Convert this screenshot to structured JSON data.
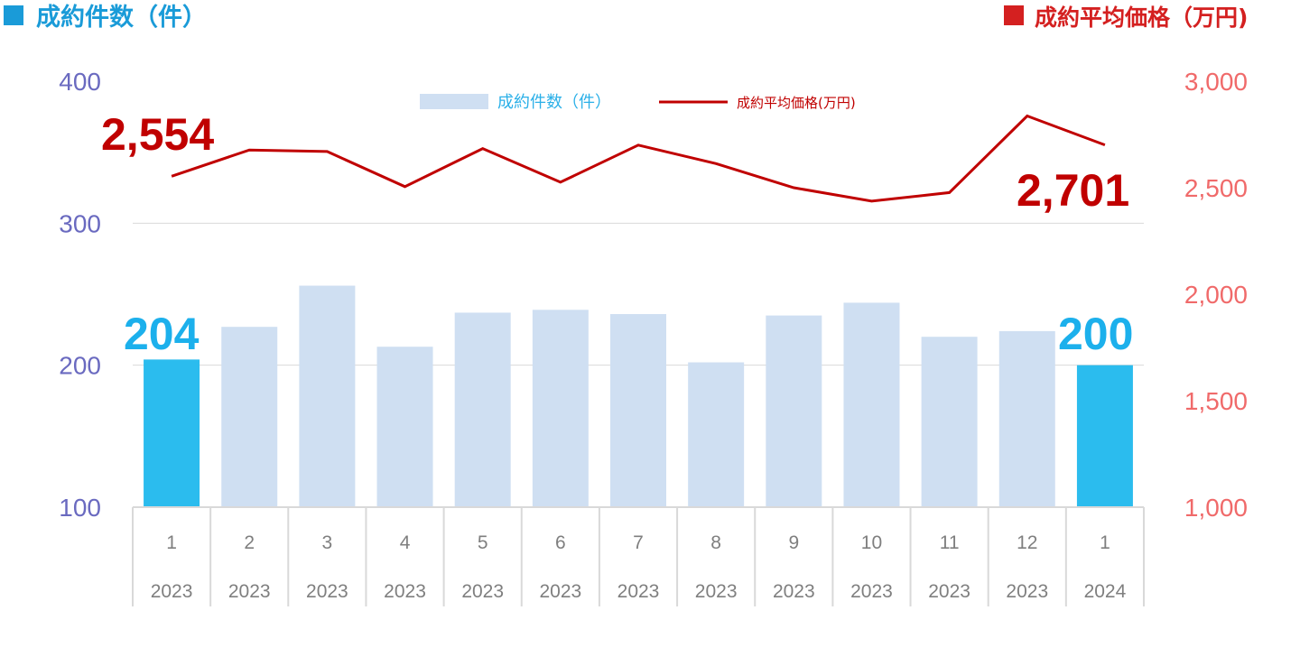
{
  "header": {
    "left_title": "成約件数（件）",
    "right_title": "成約平均価格（万円)",
    "left_color": "#1a9bd8",
    "right_color": "#d42020"
  },
  "legend": {
    "bar_label": "成約件数（件）",
    "line_label": "成約平均価格(万円)"
  },
  "colors": {
    "bar_normal": "#cfdff2",
    "bar_highlight": "#2bbcee",
    "line": "#c00000",
    "left_axis_text": "#6a6ac0",
    "right_axis_text": "#f06a6a",
    "highlight_count_text": "#1cb0ec",
    "highlight_price_text": "#c00000",
    "gridline": "#d9d9d9",
    "category_text": "#7f7f7f"
  },
  "chart_data": {
    "type": "bar",
    "categories": [
      {
        "month": "1",
        "year": "2023"
      },
      {
        "month": "2",
        "year": "2023"
      },
      {
        "month": "3",
        "year": "2023"
      },
      {
        "month": "4",
        "year": "2023"
      },
      {
        "month": "5",
        "year": "2023"
      },
      {
        "month": "6",
        "year": "2023"
      },
      {
        "month": "7",
        "year": "2023"
      },
      {
        "month": "8",
        "year": "2023"
      },
      {
        "month": "9",
        "year": "2023"
      },
      {
        "month": "10",
        "year": "2023"
      },
      {
        "month": "11",
        "year": "2023"
      },
      {
        "month": "12",
        "year": "2023"
      },
      {
        "month": "1",
        "year": "2024"
      }
    ],
    "series": [
      {
        "name": "成約件数（件）",
        "type": "bar",
        "axis": "left",
        "values": [
          204,
          227,
          256,
          213,
          237,
          239,
          236,
          202,
          235,
          244,
          220,
          224,
          200
        ],
        "highlight": [
          true,
          false,
          false,
          false,
          false,
          false,
          false,
          false,
          false,
          false,
          false,
          false,
          true
        ]
      },
      {
        "name": "成約平均価格(万円)",
        "type": "line",
        "axis": "right",
        "values": [
          2554,
          2677,
          2670,
          2505,
          2684,
          2526,
          2700,
          2613,
          2500,
          2437,
          2477,
          2837,
          2701
        ]
      }
    ],
    "left_axis": {
      "min": 100,
      "max": 400,
      "ticks": [
        "100",
        "200",
        "300",
        "400"
      ],
      "tick_values": [
        100,
        200,
        300,
        400
      ]
    },
    "right_axis": {
      "min": 1000,
      "max": 3000,
      "ticks": [
        "1,000",
        "1,500",
        "2,000",
        "2,500",
        "3,000"
      ],
      "tick_values": [
        1000,
        1500,
        2000,
        2500,
        3000
      ]
    },
    "grid": true,
    "legend_position": "top-center",
    "annotations": {
      "first_count": "204",
      "last_count": "200",
      "first_price": "2,554",
      "last_price": "2,701"
    }
  }
}
